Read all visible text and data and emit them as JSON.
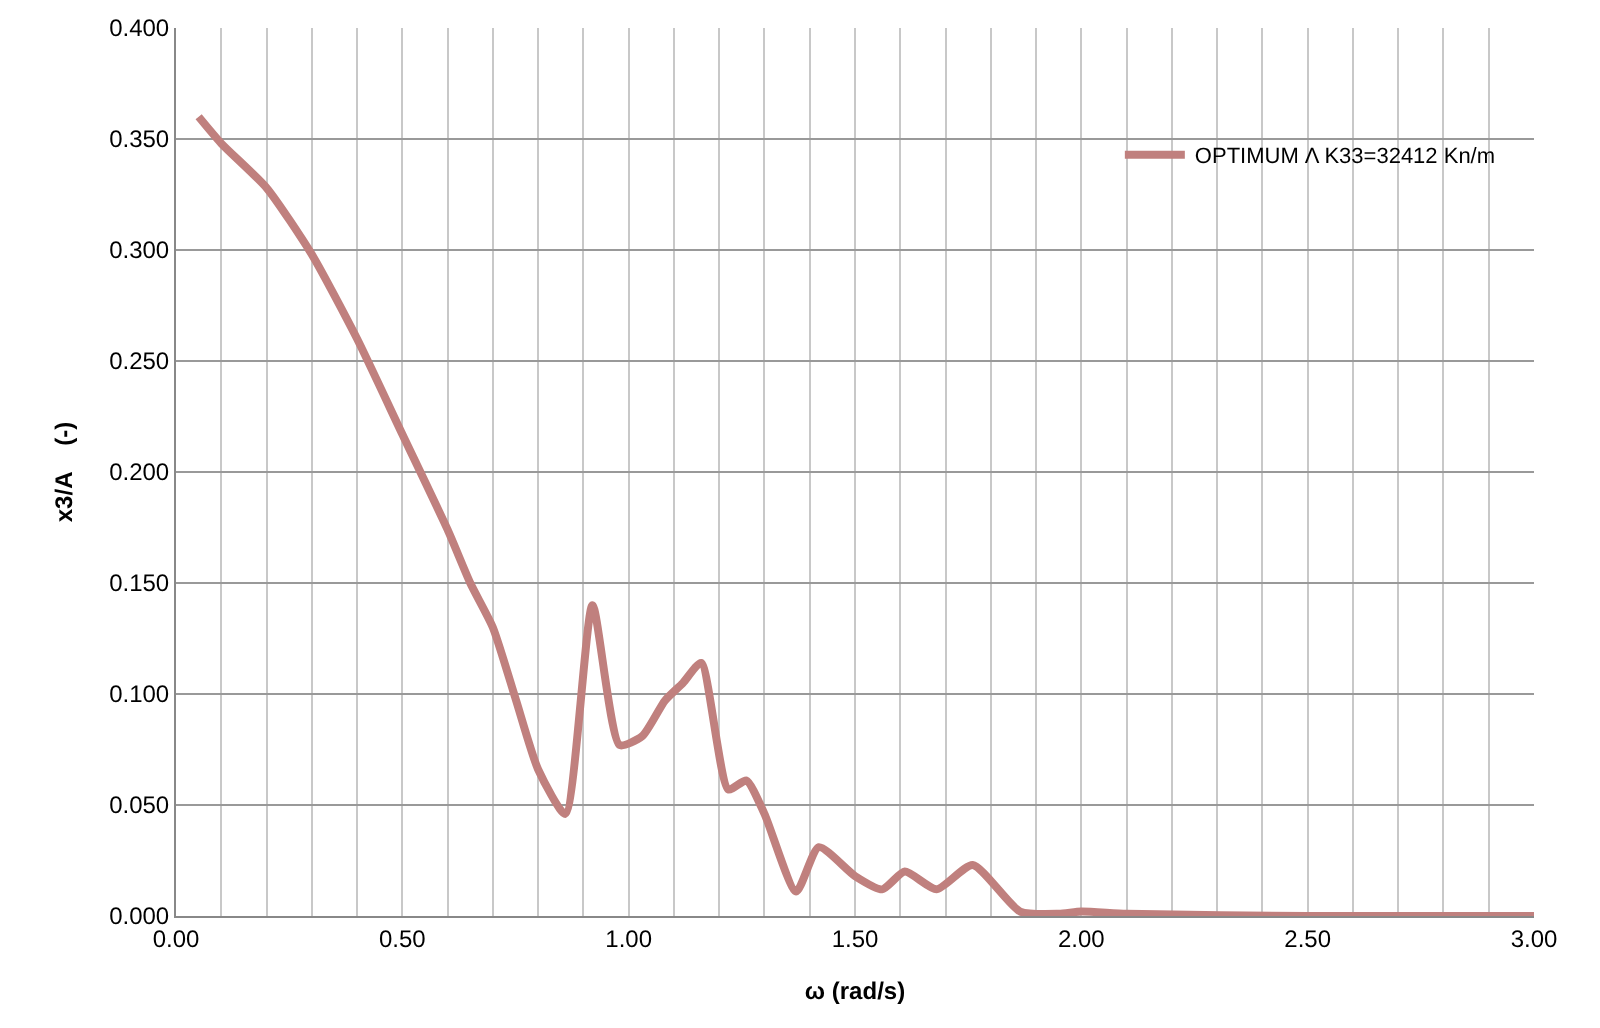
{
  "chart_data": {
    "type": "line",
    "xlabel": "ω (rad/s)",
    "ylabel": "x3/A    (-)",
    "x": [
      0.05,
      0.1,
      0.2,
      0.3,
      0.4,
      0.5,
      0.6,
      0.65,
      0.7,
      0.75,
      0.8,
      0.86,
      0.92,
      0.98,
      1.03,
      1.08,
      1.12,
      1.16,
      1.22,
      1.26,
      1.3,
      1.37,
      1.42,
      1.5,
      1.56,
      1.61,
      1.68,
      1.76,
      1.865,
      1.95,
      2.0,
      2.1,
      2.5,
      3.0
    ],
    "series": [
      {
        "name": "OPTIMUM Λ K33=32412 Kn/m",
        "color": "#c0807e",
        "values": [
          0.36,
          0.348,
          0.328,
          0.298,
          0.26,
          0.217,
          0.174,
          0.15,
          0.13,
          0.098,
          0.066,
          0.046,
          0.14,
          0.077,
          0.081,
          0.097,
          0.105,
          0.114,
          0.057,
          0.061,
          0.046,
          0.011,
          0.031,
          0.018,
          0.012,
          0.02,
          0.012,
          0.023,
          0.002,
          0.001,
          0.002,
          0.001,
          0.0,
          0.0
        ]
      }
    ],
    "xlim": [
      0,
      3
    ],
    "ylim": [
      0,
      0.4
    ],
    "xticks": [
      {
        "value": 0,
        "label": "0.00"
      },
      {
        "value": 0.1,
        "label": null
      },
      {
        "value": 0.2,
        "label": null
      },
      {
        "value": 0.3,
        "label": null
      },
      {
        "value": 0.4,
        "label": null
      },
      {
        "value": 0.5,
        "label": "0.50"
      },
      {
        "value": 0.6,
        "label": null
      },
      {
        "value": 0.7,
        "label": null
      },
      {
        "value": 0.8,
        "label": null
      },
      {
        "value": 0.9,
        "label": null
      },
      {
        "value": 1,
        "label": "1.00"
      },
      {
        "value": 1.1,
        "label": null
      },
      {
        "value": 1.2,
        "label": null
      },
      {
        "value": 1.3,
        "label": null
      },
      {
        "value": 1.4,
        "label": null
      },
      {
        "value": 1.5,
        "label": "1.50"
      },
      {
        "value": 1.6,
        "label": null
      },
      {
        "value": 1.7,
        "label": null
      },
      {
        "value": 1.8,
        "label": null
      },
      {
        "value": 1.9,
        "label": null
      },
      {
        "value": 2,
        "label": "2.00"
      },
      {
        "value": 2.1,
        "label": null
      },
      {
        "value": 2.2,
        "label": null
      },
      {
        "value": 2.3,
        "label": null
      },
      {
        "value": 2.4,
        "label": null
      },
      {
        "value": 2.5,
        "label": "2.50"
      },
      {
        "value": 2.6,
        "label": null
      },
      {
        "value": 2.7,
        "label": null
      },
      {
        "value": 2.8,
        "label": null
      },
      {
        "value": 2.9,
        "label": null
      },
      {
        "value": 3,
        "label": "3.00"
      }
    ],
    "yticks": [
      {
        "value": 0,
        "label": "0.000"
      },
      {
        "value": 0.05,
        "label": "0.050"
      },
      {
        "value": 0.1,
        "label": "0.100"
      },
      {
        "value": 0.15,
        "label": "0.150"
      },
      {
        "value": 0.2,
        "label": "0.200"
      },
      {
        "value": 0.25,
        "label": "0.250"
      },
      {
        "value": 0.3,
        "label": "0.300"
      },
      {
        "value": 0.35,
        "label": "0.350"
      },
      {
        "value": 0.4,
        "label": "0.400"
      }
    ],
    "grid": true,
    "legend": "top right",
    "marker": "none",
    "line_style": "solid"
  }
}
